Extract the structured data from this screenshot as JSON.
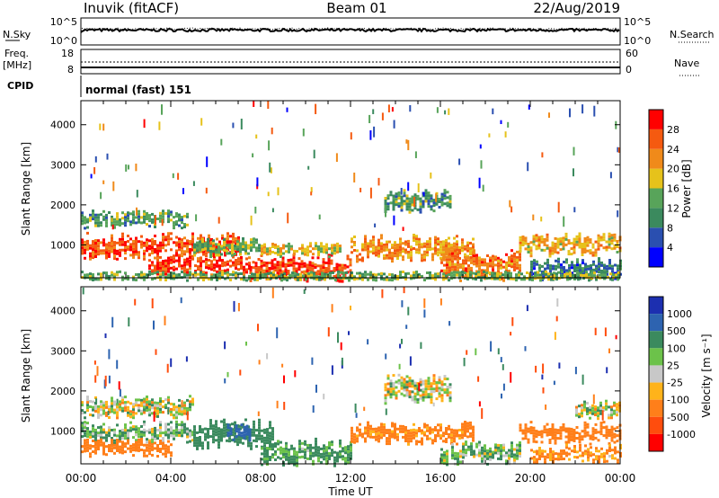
{
  "header": {
    "station": "Inuvik (fitACF)",
    "beam": "Beam 01",
    "date": "22/Aug/2019"
  },
  "noise_panel": {
    "left_label": "N.Sky",
    "left_ticks": [
      "10^5",
      "10^0"
    ],
    "right_ticks": [
      "10^5",
      "10^0"
    ],
    "right_label": "N.Search"
  },
  "freq_panel": {
    "left_label_1": "Freq.",
    "left_label_2": "[MHz]",
    "left_ticks": [
      "18",
      "8"
    ],
    "right_ticks": [
      "60",
      "0"
    ],
    "right_label": "Nave"
  },
  "cpid": {
    "label": "CPID",
    "value": "normal (fast) 151"
  },
  "x_axis": {
    "label": "Time UT",
    "ticks": [
      "00:00",
      "04:00",
      "08:00",
      "12:00",
      "16:00",
      "20:00",
      "00:00"
    ]
  },
  "colors": {
    "power": [
      "#0000ff",
      "#2a4fb0",
      "#3b8a5e",
      "#58a45a",
      "#e6c21b",
      "#f08a1a",
      "#f55a10",
      "#ff0000"
    ],
    "velocity": [
      "#1c2fb0",
      "#2d63b0",
      "#3b8a5e",
      "#6cc24a",
      "#c8c8c8",
      "#ffb31a",
      "#ff7f1a",
      "#ff4d0d",
      "#ff0000"
    ]
  },
  "chart_data": [
    {
      "type": "heatmap",
      "title": "",
      "xlabel": "Time UT",
      "ylabel": "Slant Range [km]",
      "xlim_hours": [
        0,
        24
      ],
      "ylim": [
        180,
        4600
      ],
      "yticks": [
        1000,
        2000,
        3000,
        4000
      ],
      "colorbar": {
        "label": "Power [dB]",
        "ticks": [
          "4",
          "8",
          "12",
          "16",
          "20",
          "24",
          "28"
        ],
        "range": [
          0,
          30
        ]
      },
      "bands": [
        {
          "t0": 0.0,
          "t1": 4.8,
          "r0": 1500,
          "r1": 1800,
          "level": 12
        },
        {
          "t0": 0.0,
          "t1": 7.0,
          "r0": 780,
          "r1": 1200,
          "level": 26
        },
        {
          "t0": 3.0,
          "t1": 7.5,
          "r0": 350,
          "r1": 700,
          "level": 28
        },
        {
          "t0": 5.0,
          "t1": 8.0,
          "r0": 800,
          "r1": 1100,
          "level": 14
        },
        {
          "t0": 7.5,
          "t1": 12.0,
          "r0": 200,
          "r1": 650,
          "level": 28
        },
        {
          "t0": 8.0,
          "t1": 11.5,
          "r0": 750,
          "r1": 1000,
          "level": 18
        },
        {
          "t0": 12.0,
          "t1": 17.5,
          "r0": 700,
          "r1": 1150,
          "level": 22
        },
        {
          "t0": 13.5,
          "t1": 16.5,
          "r0": 1900,
          "r1": 2300,
          "level": 12
        },
        {
          "t0": 16.0,
          "t1": 19.5,
          "r0": 250,
          "r1": 750,
          "level": 24
        },
        {
          "t0": 19.5,
          "t1": 24.0,
          "r0": 800,
          "r1": 1200,
          "level": 20
        },
        {
          "t0": 20.0,
          "t1": 24.0,
          "r0": 250,
          "r1": 600,
          "level": 8
        },
        {
          "t0": 0.0,
          "t1": 24.0,
          "r0": 180,
          "r1": 320,
          "level": 14
        }
      ]
    },
    {
      "type": "heatmap",
      "title": "",
      "xlabel": "Time UT",
      "ylabel": "Slant Range [km]",
      "xlim_hours": [
        0,
        24
      ],
      "ylim": [
        180,
        4600
      ],
      "yticks": [
        1000,
        2000,
        3000,
        4000
      ],
      "colorbar": {
        "label": "Velocity [m s⁻¹]",
        "ticks": [
          "1000",
          "500",
          "100",
          "25",
          "-25",
          "-100",
          "-500",
          "-1000"
        ],
        "range": [
          -1200,
          1200
        ]
      },
      "bands": [
        {
          "t0": 0.0,
          "t1": 5.0,
          "r0": 1450,
          "r1": 1800,
          "level": 0
        },
        {
          "t0": 0.0,
          "t1": 5.0,
          "r0": 750,
          "r1": 1150,
          "level": 80
        },
        {
          "t0": 0.0,
          "t1": 4.0,
          "r0": 450,
          "r1": 750,
          "level": -300
        },
        {
          "t0": 5.0,
          "t1": 8.5,
          "r0": 700,
          "r1": 1200,
          "level": 300
        },
        {
          "t0": 6.5,
          "t1": 7.5,
          "r0": 850,
          "r1": 1150,
          "level": 800
        },
        {
          "t0": 8.0,
          "t1": 12.0,
          "r0": 250,
          "r1": 700,
          "level": 150
        },
        {
          "t0": 12.0,
          "t1": 17.5,
          "r0": 750,
          "r1": 1150,
          "level": -200
        },
        {
          "t0": 13.5,
          "t1": 16.5,
          "r0": 1800,
          "r1": 2300,
          "level": 0
        },
        {
          "t0": 16.0,
          "t1": 19.5,
          "r0": 250,
          "r1": 650,
          "level": 80
        },
        {
          "t0": 19.5,
          "t1": 24.0,
          "r0": 750,
          "r1": 1150,
          "level": -300
        },
        {
          "t0": 20.0,
          "t1": 24.0,
          "r0": 300,
          "r1": 600,
          "level": -150
        },
        {
          "t0": 22.0,
          "t1": 24.0,
          "r0": 1400,
          "r1": 1700,
          "level": 0
        }
      ]
    }
  ]
}
